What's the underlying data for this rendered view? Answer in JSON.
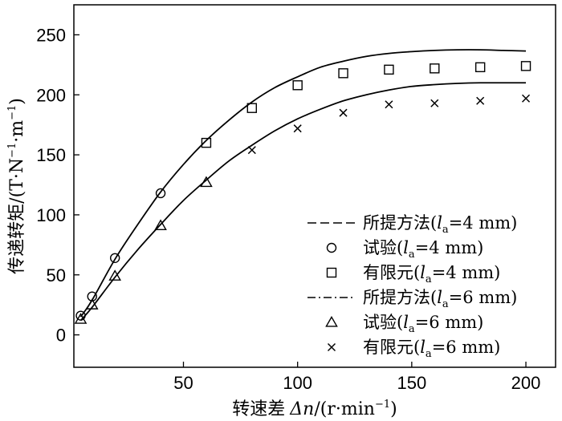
{
  "chart_data": {
    "type": "line",
    "xlabel_cn": "转速差",
    "xlabel_var": "Δn",
    "xlabel_unit": "/(r·min",
    "xlabel_unit_sup": "−1",
    "xlabel_unit_close": ")",
    "ylabel_cn": "传递转矩",
    "ylabel_unit": "/(T·N",
    "ylabel_unit_sup1": "−1",
    "ylabel_unit_mid": "·m",
    "ylabel_unit_sup2": "−1",
    "ylabel_unit_close": ")",
    "xlim": [
      2,
      213
    ],
    "ylim": [
      -27,
      275
    ],
    "x_ticks": [
      {
        "value": 50,
        "label": "50"
      },
      {
        "value": 100,
        "label": "100"
      },
      {
        "value": 150,
        "label": "150"
      },
      {
        "value": 200,
        "label": "200"
      }
    ],
    "y_ticks": [
      {
        "value": 0,
        "label": "0"
      },
      {
        "value": 50,
        "label": "50"
      },
      {
        "value": 100,
        "label": "100"
      },
      {
        "value": 150,
        "label": "150"
      },
      {
        "value": 200,
        "label": "200"
      },
      {
        "value": 250,
        "label": "250"
      }
    ],
    "series": [
      {
        "kind": "line",
        "legend_prefix": "所提方法(",
        "legend_sub": "a",
        "legend_suffix": "=4 mm)",
        "x": [
          5,
          10,
          20,
          30,
          40,
          50,
          60,
          70,
          80,
          90,
          100,
          110,
          120,
          130,
          140,
          150,
          160,
          170,
          180,
          190,
          200
        ],
        "y": [
          15,
          29,
          63,
          92,
          119,
          142,
          162,
          179,
          194,
          206,
          215,
          223,
          228,
          232,
          234.5,
          236,
          237,
          237.5,
          237.5,
          237,
          236.5
        ]
      },
      {
        "kind": "marker",
        "marker": "circle",
        "legend_prefix": "试验(",
        "legend_sub": "a",
        "legend_suffix": "=4 mm)",
        "x": [
          5,
          10,
          20,
          40
        ],
        "y": [
          16,
          32,
          64,
          118
        ]
      },
      {
        "kind": "marker",
        "marker": "square",
        "legend_prefix": "有限元(",
        "legend_sub": "a",
        "legend_suffix": "=4 mm)",
        "x": [
          60,
          80,
          100,
          120,
          140,
          160,
          180,
          200
        ],
        "y": [
          160,
          189,
          208,
          218,
          221,
          222,
          223,
          224
        ]
      },
      {
        "kind": "line",
        "legend_prefix": "所提方法(",
        "legend_sub": "a",
        "legend_suffix": "=6 mm)",
        "x": [
          5,
          10,
          20,
          30,
          40,
          50,
          60,
          70,
          80,
          90,
          100,
          110,
          120,
          130,
          140,
          150,
          160,
          170,
          180,
          190,
          200
        ],
        "y": [
          12,
          23,
          48,
          71,
          92,
          112,
          129,
          145,
          158,
          170,
          180,
          188,
          195,
          200,
          204,
          207,
          208.5,
          209.5,
          210,
          210,
          210
        ]
      },
      {
        "kind": "marker",
        "marker": "triangle",
        "legend_prefix": "试验(",
        "legend_sub": "a",
        "legend_suffix": "=6 mm)",
        "x": [
          5,
          10,
          20,
          40,
          60
        ],
        "y": [
          13,
          25,
          49,
          91,
          127
        ]
      },
      {
        "kind": "marker",
        "marker": "cross",
        "legend_prefix": "有限元(",
        "legend_sub": "a",
        "legend_suffix": "=6 mm)",
        "x": [
          80,
          100,
          120,
          140,
          160,
          180,
          200
        ],
        "y": [
          154,
          172,
          185,
          192,
          193,
          195,
          197
        ]
      }
    ],
    "legend_position": "bottom-right",
    "legend_line_dash": [
      "dashed",
      "dash-dot"
    ]
  }
}
